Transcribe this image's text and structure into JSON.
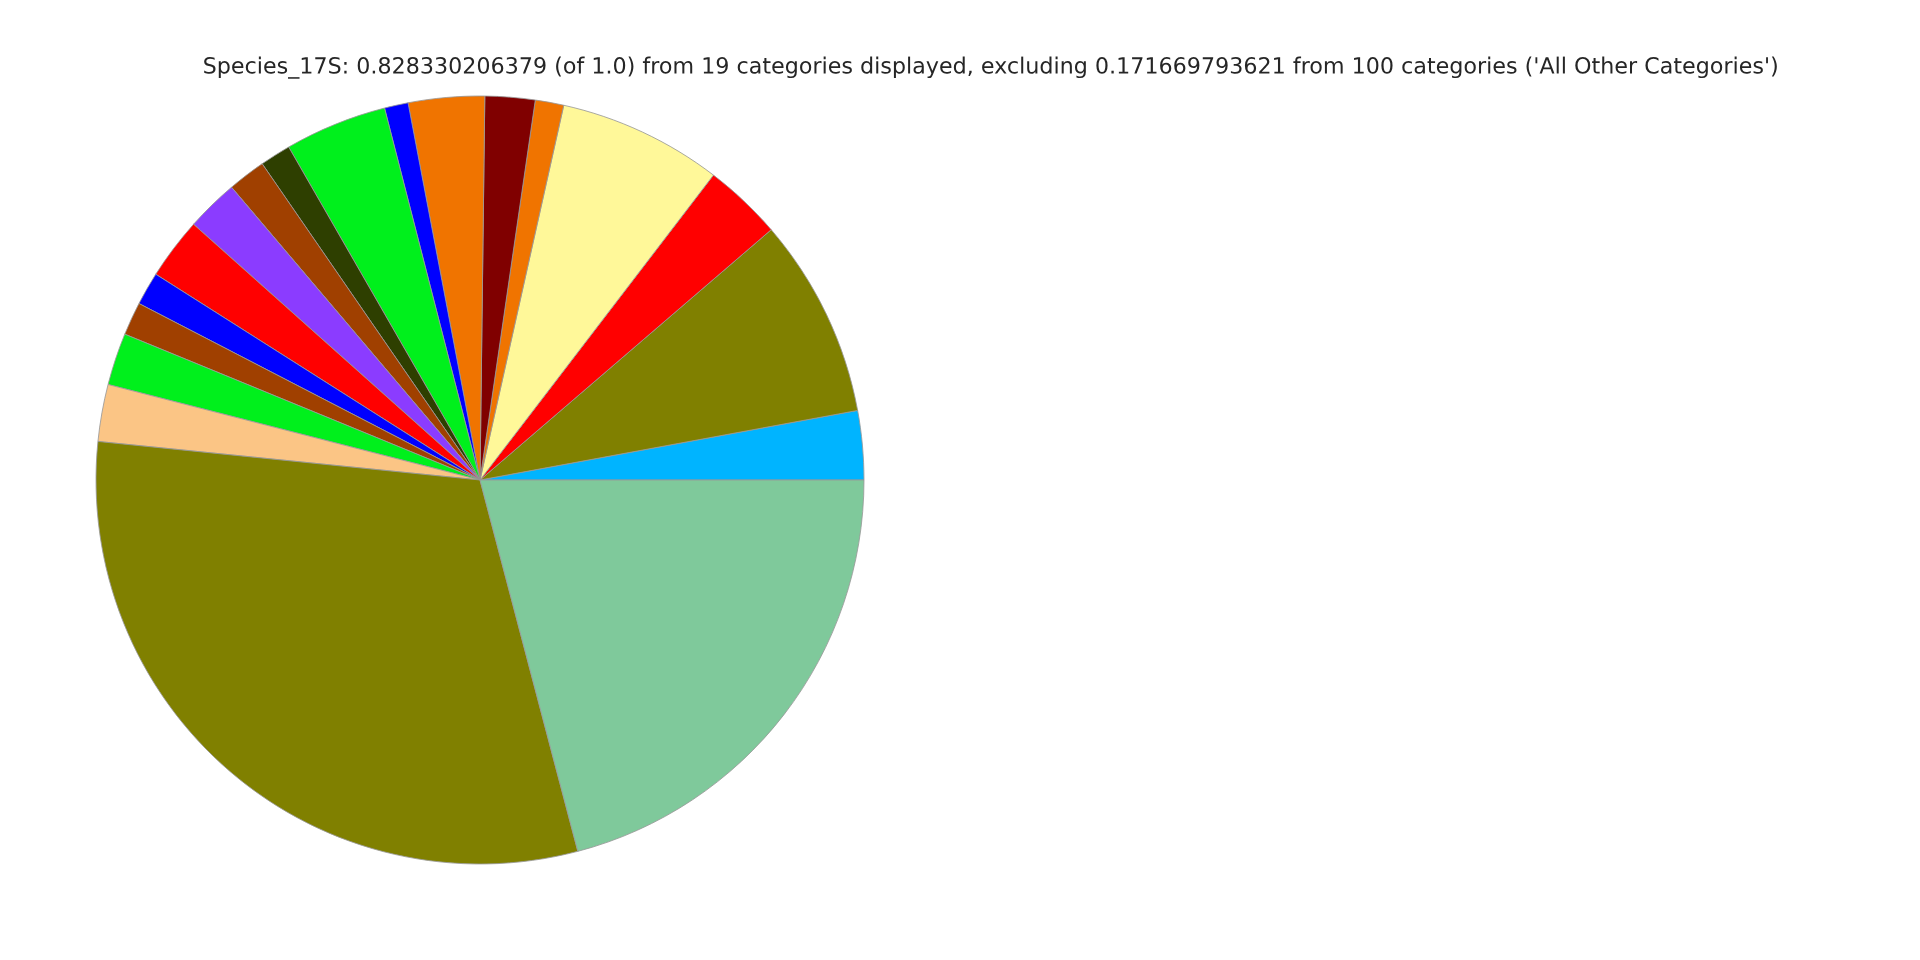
{
  "chart_data": {
    "type": "pie",
    "title": "Species_17S: 0.828330206379 (of 1.0) from 19 categories displayed, excluding 0.171669793621 from 100 categories ('All Other Categories')",
    "categories": [
      null,
      null,
      null,
      null,
      null,
      null,
      null,
      null,
      null,
      null,
      null,
      null,
      null,
      null,
      null,
      null,
      null,
      null,
      null
    ],
    "values": [
      2.9,
      8.4,
      3.3,
      6.9,
      1.2,
      2.1,
      3.2,
      1.0,
      4.3,
      1.3,
      1.6,
      2.2,
      2.6,
      1.4,
      1.4,
      2.2,
      2.4,
      30.7,
      20.9
    ],
    "colors": [
      "#00b4ff",
      "#808000",
      "#ff0000",
      "#fff899",
      "#f07400",
      "#800000",
      "#f07400",
      "#0000ff",
      "#00f01c",
      "#2e3f00",
      "#a04000",
      "#8b3cff",
      "#ff0000",
      "#0000ff",
      "#a04000",
      "#00f01c",
      "#fbc585",
      "#808000",
      "#7fc99b"
    ]
  }
}
